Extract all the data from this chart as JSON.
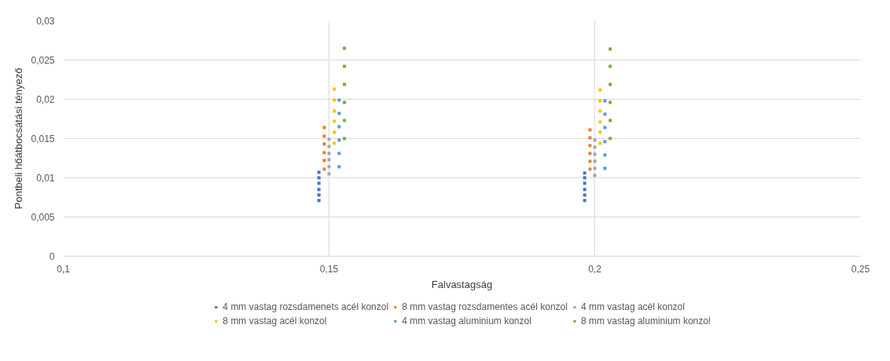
{
  "chart_data": {
    "type": "scatter",
    "xlabel": "Falvastagság",
    "ylabel": "Pontbeli hőátbocsátási tényező",
    "xlim": [
      0.1,
      0.25
    ],
    "xticks": [
      {
        "value": 0.1,
        "label": "0,1"
      },
      {
        "value": 0.15,
        "label": "0,15"
      },
      {
        "value": 0.2,
        "label": "0,2"
      },
      {
        "value": 0.25,
        "label": "0,25"
      }
    ],
    "ylim": [
      0,
      0.03
    ],
    "yticks": [
      0,
      {
        "value": 0.005,
        "label": "0,005"
      },
      {
        "value": 0.01,
        "label": "0,01"
      },
      {
        "value": 0.015,
        "label": "0,015"
      },
      {
        "value": 0.02,
        "label": "0,02"
      },
      {
        "value": 0.025,
        "label": "0,025"
      },
      {
        "value": 0.03,
        "label": "0,03"
      }
    ],
    "grid": true,
    "legend": "bottom",
    "marker": "square",
    "series": [
      {
        "name": "4 mm vastag rozsdamenets acél konzol",
        "color": "#4472c4",
        "x": [
          0.1481,
          0.1481,
          0.1481,
          0.1481,
          0.1481,
          0.1481,
          0.1981,
          0.1981,
          0.1981,
          0.1981,
          0.1981,
          0.1981
        ],
        "values": [
          0.0071,
          0.0078,
          0.0085,
          0.0093,
          0.01,
          0.0107,
          0.0071,
          0.0078,
          0.0085,
          0.0093,
          0.01,
          0.0106
        ]
      },
      {
        "name": "8 mm vastag rozsdamentes acél konzol",
        "color": "#ed7d31",
        "x": [
          0.1491,
          0.1491,
          0.1491,
          0.1491,
          0.1491,
          0.1491,
          0.1991,
          0.1991,
          0.1991,
          0.1991,
          0.1991,
          0.1991
        ],
        "values": [
          0.0111,
          0.0122,
          0.0132,
          0.0143,
          0.0153,
          0.0164,
          0.0111,
          0.0121,
          0.0131,
          0.0141,
          0.0151,
          0.0161
        ]
      },
      {
        "name": "4 mm vastag acél konzol",
        "color": "#a5a5a5",
        "x": [
          0.15,
          0.15,
          0.15,
          0.15,
          0.15,
          0.15,
          0.2,
          0.2,
          0.2,
          0.2,
          0.2,
          0.2
        ],
        "values": [
          0.0105,
          0.0114,
          0.0123,
          0.0131,
          0.014,
          0.0149,
          0.0103,
          0.0112,
          0.0121,
          0.013,
          0.0139,
          0.0148
        ]
      },
      {
        "name": "8 mm vastag acél konzol",
        "color": "#ffc000",
        "x": [
          0.151,
          0.151,
          0.151,
          0.151,
          0.151,
          0.151,
          0.201,
          0.201,
          0.201,
          0.201,
          0.201,
          0.201
        ],
        "values": [
          0.0144,
          0.0158,
          0.0172,
          0.0185,
          0.0199,
          0.0213,
          0.0144,
          0.0158,
          0.0171,
          0.0185,
          0.0198,
          0.0212
        ]
      },
      {
        "name": "4 mm vastag aluminium konzol",
        "color": "#5b9bd5",
        "x": [
          0.1519,
          0.1519,
          0.1519,
          0.1519,
          0.1519,
          0.1519,
          0.2019,
          0.2019,
          0.2019,
          0.2019,
          0.2019,
          0.2019
        ],
        "values": [
          0.0114,
          0.0131,
          0.0148,
          0.0165,
          0.0182,
          0.0199,
          0.0112,
          0.0129,
          0.0146,
          0.0164,
          0.0181,
          0.0198
        ]
      },
      {
        "name": "8 mm vastag aluminium konzol",
        "color": "#70ad47",
        "x": [
          0.1529,
          0.1529,
          0.1529,
          0.1529,
          0.1529,
          0.1529,
          0.2029,
          0.2029,
          0.2029,
          0.2029,
          0.2029,
          0.2029
        ],
        "values": [
          0.015,
          0.0173,
          0.0196,
          0.0219,
          0.0242,
          0.0265,
          0.015,
          0.0173,
          0.0196,
          0.0219,
          0.0242,
          0.0264
        ]
      }
    ]
  }
}
